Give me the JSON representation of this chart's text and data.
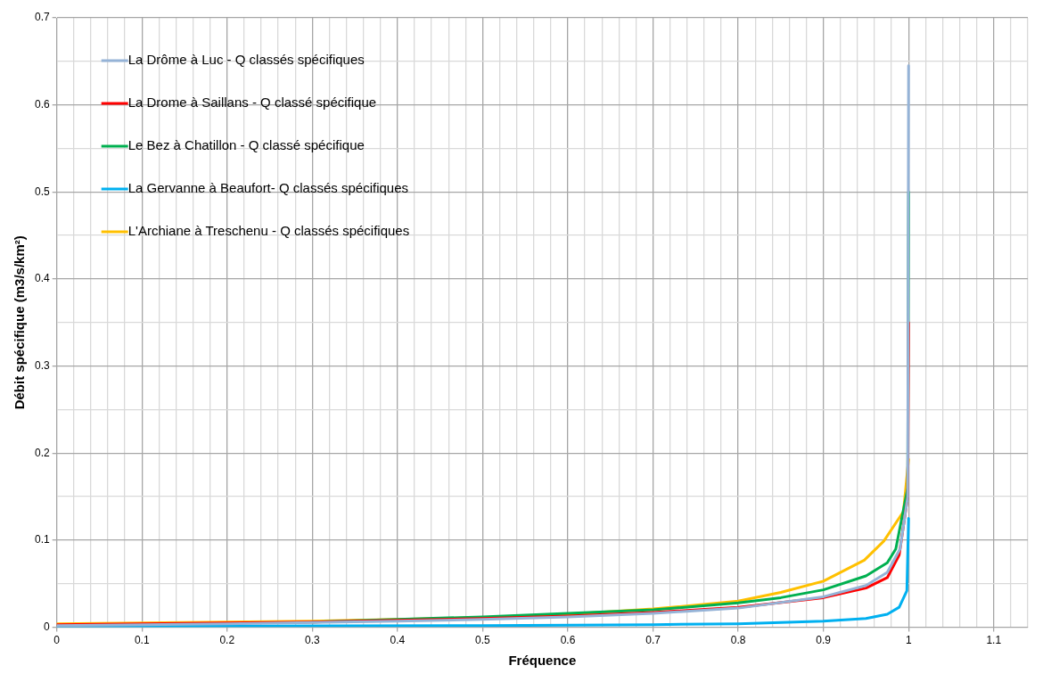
{
  "chart_data": {
    "type": "line",
    "xlabel": "Fréquence",
    "ylabel": "Débit spécifique (m3/s/km²)",
    "xlim": [
      0,
      1.14
    ],
    "ylim": [
      0,
      0.7
    ],
    "xticks": [
      0,
      {
        "value": 0.02,
        "label": null
      },
      {
        "value": 0.04,
        "label": null
      },
      {
        "value": 0.06,
        "label": null
      },
      {
        "value": 0.08,
        "label": null
      },
      0.1,
      {
        "value": 0.12,
        "label": null
      },
      {
        "value": 0.14,
        "label": null
      },
      {
        "value": 0.16,
        "label": null
      },
      {
        "value": 0.18,
        "label": null
      },
      0.2,
      {
        "value": 0.22,
        "label": null
      },
      {
        "value": 0.24,
        "label": null
      },
      {
        "value": 0.26,
        "label": null
      },
      {
        "value": 0.28,
        "label": null
      },
      0.3,
      {
        "value": 0.32,
        "label": null
      },
      {
        "value": 0.34,
        "label": null
      },
      {
        "value": 0.36,
        "label": null
      },
      {
        "value": 0.38,
        "label": null
      },
      0.4,
      {
        "value": 0.42,
        "label": null
      },
      {
        "value": 0.44,
        "label": null
      },
      {
        "value": 0.46,
        "label": null
      },
      {
        "value": 0.48,
        "label": null
      },
      0.5,
      {
        "value": 0.52,
        "label": null
      },
      {
        "value": 0.54,
        "label": null
      },
      {
        "value": 0.56,
        "label": null
      },
      {
        "value": 0.58,
        "label": null
      },
      0.6,
      {
        "value": 0.62,
        "label": null
      },
      {
        "value": 0.64,
        "label": null
      },
      {
        "value": 0.66,
        "label": null
      },
      {
        "value": 0.68,
        "label": null
      },
      0.7,
      {
        "value": 0.72,
        "label": null
      },
      {
        "value": 0.74,
        "label": null
      },
      {
        "value": 0.76,
        "label": null
      },
      {
        "value": 0.78,
        "label": null
      },
      0.8,
      {
        "value": 0.82,
        "label": null
      },
      {
        "value": 0.84,
        "label": null
      },
      {
        "value": 0.86,
        "label": null
      },
      {
        "value": 0.88,
        "label": null
      },
      0.9,
      {
        "value": 0.92,
        "label": null
      },
      {
        "value": 0.94,
        "label": null
      },
      {
        "value": 0.96,
        "label": null
      },
      {
        "value": 0.98,
        "label": null
      },
      1,
      {
        "value": 1.02,
        "label": null
      },
      {
        "value": 1.04,
        "label": null
      },
      {
        "value": 1.06,
        "label": null
      },
      {
        "value": 1.08,
        "label": null
      },
      1.1,
      {
        "value": 1.12,
        "label": null
      },
      {
        "value": 1.14,
        "label": null
      }
    ],
    "yticks": [
      0,
      {
        "value": 0.05,
        "label": null
      },
      0.1,
      {
        "value": 0.15,
        "label": null
      },
      0.2,
      {
        "value": 0.25,
        "label": null
      },
      0.3,
      {
        "value": 0.35,
        "label": null
      },
      0.4,
      {
        "value": 0.45,
        "label": null
      },
      0.5,
      {
        "value": 0.55,
        "label": null
      },
      0.6,
      {
        "value": 0.65,
        "label": null
      },
      0.7
    ],
    "grid": true,
    "legend": "top left",
    "marker": "none",
    "line_style": "solid",
    "series": [
      {
        "name": "La Drôme à Luc - Q classés spécifiques",
        "color": "#95b3d7",
        "x": [
          0,
          0.2,
          0.4,
          0.5,
          0.6,
          0.7,
          0.8,
          0.9,
          0.95,
          0.975,
          0.99,
          0.999,
          1
        ],
        "values": [
          0.002,
          0.004,
          0.007,
          0.009,
          0.012,
          0.016,
          0.022,
          0.035,
          0.048,
          0.063,
          0.09,
          0.15,
          0.645
        ]
      },
      {
        "name": "La Drome à Saillans - Q classé spécifique",
        "color": "#ff0000",
        "x": [
          0,
          0.2,
          0.3,
          0.4,
          0.5,
          0.6,
          0.7,
          0.8,
          0.9,
          0.95,
          0.975,
          0.989,
          0.999,
          1
        ],
        "values": [
          0.003,
          0.005,
          0.006,
          0.008,
          0.01,
          0.013,
          0.017,
          0.023,
          0.034,
          0.045,
          0.057,
          0.083,
          0.15,
          0.35
        ]
      },
      {
        "name": "Le Bez à Chatillon - Q classé spécifique",
        "color": "#00b050",
        "x": [
          0.3,
          0.4,
          0.5,
          0.6,
          0.7,
          0.8,
          0.85,
          0.9,
          0.95,
          0.975,
          0.985,
          0.999,
          1
        ],
        "values": [
          0.006,
          0.009,
          0.012,
          0.016,
          0.02,
          0.028,
          0.034,
          0.043,
          0.059,
          0.074,
          0.09,
          0.16,
          0.5
        ]
      },
      {
        "name": "La Gervanne à Beaufort- Q classés spécifiques",
        "color": "#00b0f0",
        "x": [
          0,
          0.5,
          0.7,
          0.8,
          0.9,
          0.95,
          0.975,
          0.989,
          0.998,
          1
        ],
        "values": [
          0.001,
          0.002,
          0.003,
          0.004,
          0.007,
          0.01,
          0.015,
          0.023,
          0.042,
          0.125
        ]
      },
      {
        "name": "L'Archiane à Treschenu - Q classés spécifiques",
        "color": "#ffc000",
        "x": [
          0,
          0.2,
          0.3,
          0.4,
          0.5,
          0.6,
          0.7,
          0.8,
          0.85,
          0.9,
          0.948,
          0.971,
          0.994,
          1
        ],
        "values": [
          0.004,
          0.006,
          0.007,
          0.009,
          0.011,
          0.015,
          0.021,
          0.03,
          0.04,
          0.053,
          0.077,
          0.099,
          0.133,
          0.193
        ]
      }
    ]
  }
}
